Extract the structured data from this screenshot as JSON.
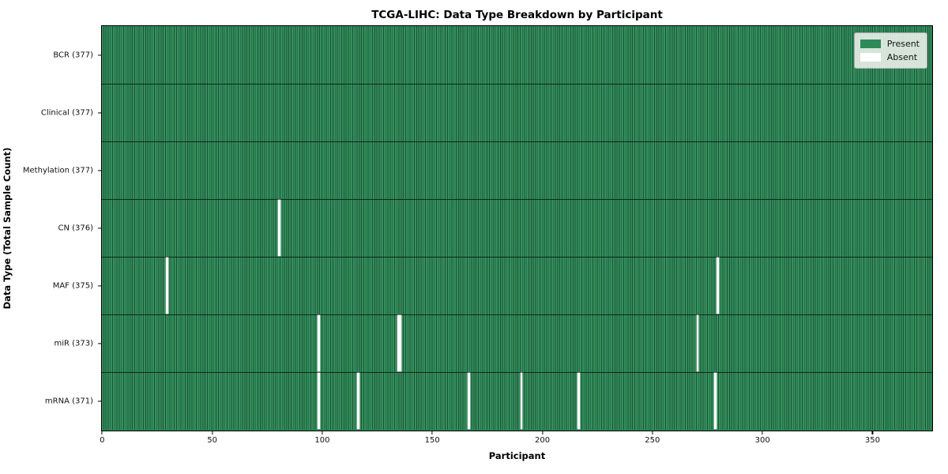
{
  "title": "TCGA-LIHC: Data Type Breakdown by Participant",
  "axes": {
    "xlabel": "Participant",
    "ylabel": "Data Type (Total Sample Count)"
  },
  "legend": {
    "present_label": "Present",
    "absent_label": "Absent"
  },
  "colors": {
    "present": "#2e8b57",
    "absent": "#ffffff",
    "cell_edge": "#1d5434",
    "row_separator": "#0e2b1b"
  },
  "chart_data": {
    "type": "heatmap",
    "title": "TCGA-LIHC: Data Type Breakdown by Participant",
    "xlabel": "Participant",
    "ylabel": "Data Type (Total Sample Count)",
    "x_ticks": [
      0,
      50,
      100,
      150,
      200,
      250,
      300,
      350
    ],
    "x_range": [
      0,
      377
    ],
    "n_participants": 377,
    "legend_position": "upper right",
    "legend_entries": [
      "Present",
      "Absent"
    ],
    "rows": [
      {
        "label": "BCR (377)",
        "data_type": "BCR",
        "total": 377,
        "absent_participants": []
      },
      {
        "label": "Clinical (377)",
        "data_type": "Clinical",
        "total": 377,
        "absent_participants": []
      },
      {
        "label": "Methylation (377)",
        "data_type": "Methylation",
        "total": 377,
        "absent_participants": []
      },
      {
        "label": "CN (376)",
        "data_type": "CN",
        "total": 376,
        "absent_participants": [
          80
        ]
      },
      {
        "label": "MAF (375)",
        "data_type": "MAF",
        "total": 375,
        "absent_participants": [
          29,
          279
        ]
      },
      {
        "label": "miR (373)",
        "data_type": "miR",
        "total": 373,
        "absent_participants": [
          98,
          134,
          135,
          270
        ]
      },
      {
        "label": "mRNA (371)",
        "data_type": "mRNA",
        "total": 371,
        "absent_participants": [
          98,
          116,
          166,
          190,
          216,
          278
        ]
      }
    ]
  }
}
